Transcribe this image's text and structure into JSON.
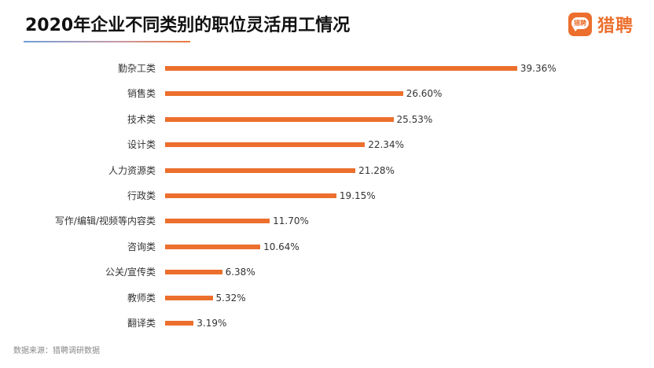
{
  "header": {
    "title": "2020年企业不同类别的职位灵活用工情况",
    "logo_icon_text": "猎聘",
    "logo_text": "猎聘"
  },
  "footer": {
    "source": "数据来源：猎聘调研数据"
  },
  "colors": {
    "bar": "#ec6f2d",
    "accent": "#ec6f2d"
  },
  "chart_data": {
    "type": "bar",
    "orientation": "horizontal",
    "title": "2020年企业不同类别的职位灵活用工情况",
    "xlabel": "",
    "ylabel": "",
    "grid": false,
    "legend": null,
    "categories": [
      "勤杂工类",
      "销售类",
      "技术类",
      "设计类",
      "人力资源类",
      "行政类",
      "写作/编辑/视频等内容类",
      "咨询类",
      "公关/宣传类",
      "教师类",
      "翻译类"
    ],
    "values": [
      39.36,
      26.6,
      25.53,
      22.34,
      21.28,
      19.15,
      11.7,
      10.64,
      6.38,
      5.32,
      3.19
    ],
    "labels": [
      "39.36%",
      "26.60%",
      "25.53%",
      "22.34%",
      "21.28%",
      "19.15%",
      "11.70%",
      "10.64%",
      "6.38%",
      "5.32%",
      "3.19%"
    ],
    "unit": "%"
  }
}
